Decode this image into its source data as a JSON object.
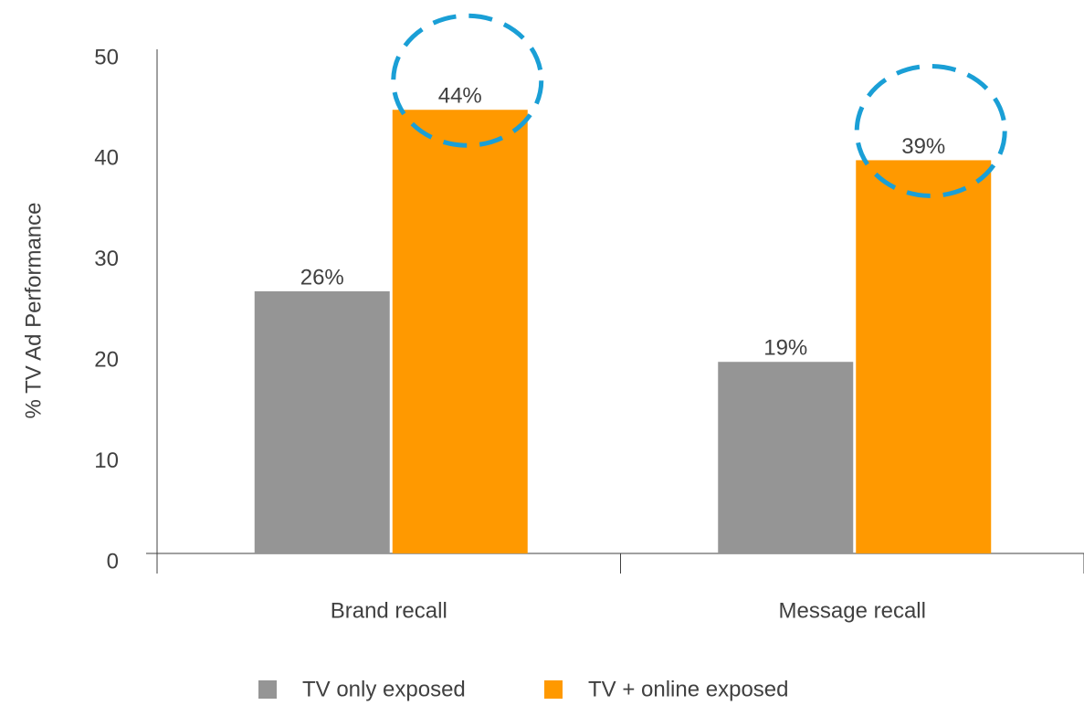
{
  "chart_data": {
    "type": "bar",
    "categories": [
      "Brand recall",
      "Message recall"
    ],
    "series": [
      {
        "name": "TV only exposed",
        "color": "#959595",
        "values": [
          26,
          19
        ],
        "value_labels": [
          "26%",
          "19%"
        ]
      },
      {
        "name": "TV + online exposed",
        "color": "#ff9900",
        "values": [
          44,
          39
        ],
        "value_labels": [
          "44%",
          "39%"
        ]
      }
    ],
    "ylabel": "% TV Ad Performance",
    "ylim": [
      0,
      50
    ],
    "yticks": [
      0,
      10,
      20,
      30,
      40,
      50
    ],
    "grid": false,
    "legend": "bottom"
  }
}
